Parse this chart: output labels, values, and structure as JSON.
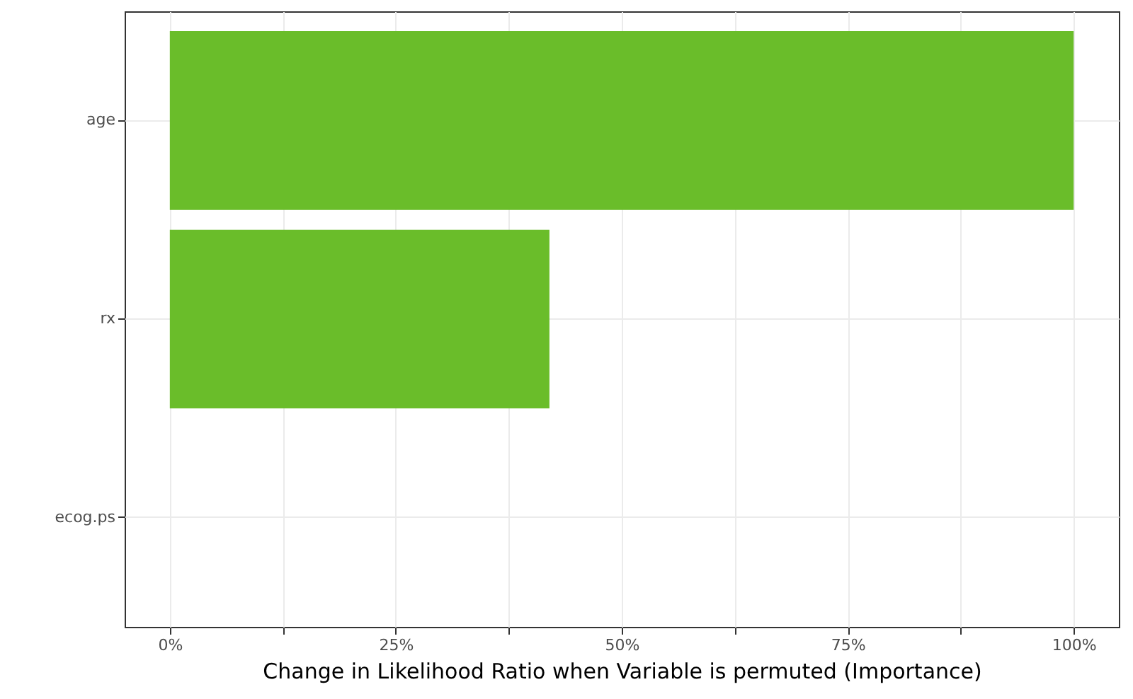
{
  "chart_data": {
    "type": "bar",
    "orientation": "horizontal",
    "xlabel": "Change in Likelihood Ratio when Variable is permuted (Importance)",
    "categories": [
      "age",
      "rx",
      "ecog.ps"
    ],
    "values": [
      100,
      42,
      0
    ],
    "color": "#6abd2a",
    "xlim": [
      -5,
      105
    ],
    "xticks": [
      {
        "value": 0,
        "label": "0%"
      },
      {
        "value": 12.5,
        "label": null
      },
      {
        "value": 25,
        "label": "25%"
      },
      {
        "value": 37.5,
        "label": null
      },
      {
        "value": 50,
        "label": "50%"
      },
      {
        "value": 62.5,
        "label": null
      },
      {
        "value": 75,
        "label": "75%"
      },
      {
        "value": 87.5,
        "label": null
      },
      {
        "value": 100,
        "label": "100%"
      }
    ],
    "grid": true
  }
}
